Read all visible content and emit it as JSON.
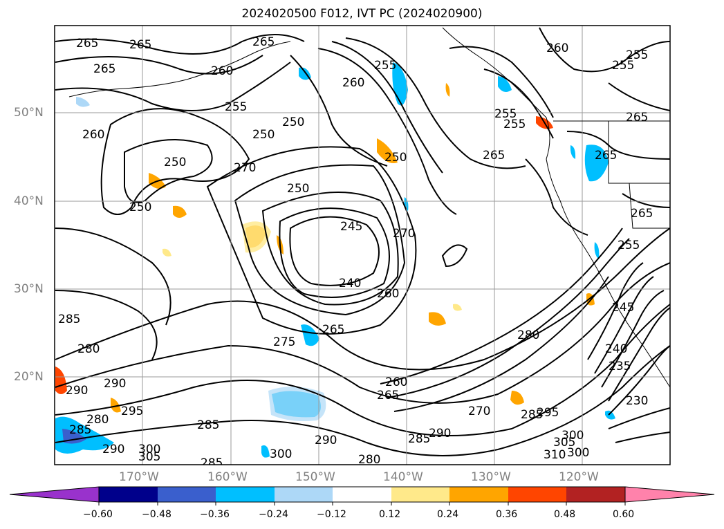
{
  "title": "2024020500 F012, IVT PC (2024020900)",
  "latitude_labels": [
    "50°N",
    "40°N",
    "30°N",
    "20°N"
  ],
  "longitude_labels": [
    "170°W",
    "160°W",
    "150°W",
    "140°W",
    "130°W",
    "120°W"
  ],
  "colorbar": {
    "ticks": [
      "−0.60",
      "−0.48",
      "−0.36",
      "−0.24",
      "−0.12",
      "0.12",
      "0.24",
      "0.36",
      "0.48",
      "0.60"
    ],
    "colors": [
      "#9932CC",
      "#00008B",
      "#3A5FCD",
      "#00BFFF",
      "#ADD8F7",
      "#FFFFFF",
      "#FFE98A",
      "#FFA500",
      "#FF4500",
      "#B22222",
      "#FF82AB"
    ]
  },
  "contour_labels": [
    "265",
    "265",
    "265",
    "265",
    "260",
    "255",
    "250",
    "250",
    "250",
    "250",
    "270",
    "255",
    "250",
    "245",
    "260",
    "270",
    "240",
    "260",
    "265",
    "275",
    "285",
    "280",
    "290",
    "290",
    "285",
    "280",
    "295",
    "285",
    "300",
    "290",
    "300",
    "290",
    "285",
    "280",
    "305",
    "260",
    "265",
    "280",
    "285",
    "290",
    "295",
    "300",
    "305",
    "310",
    "285",
    "270",
    "260",
    "255",
    "255",
    "265",
    "265",
    "265",
    "260",
    "255",
    "255",
    "250",
    "265",
    "255",
    "240",
    "245",
    "235",
    "230",
    "300"
  ],
  "shading_colors": {
    "light_blue": "#ADD8F7",
    "blue": "#00BFFF",
    "dark_blue": "#3A5FCD",
    "yellow": "#FFE98A",
    "orange": "#FFA500",
    "red_orange": "#FF4500"
  }
}
